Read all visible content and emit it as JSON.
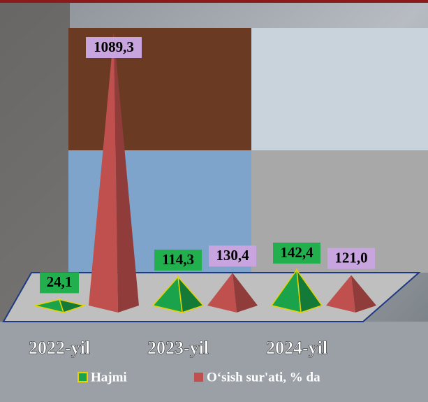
{
  "chart_data": {
    "type": "pyramid",
    "categories": [
      "2022-yil",
      "2023-yil",
      "2024-yil"
    ],
    "series": [
      {
        "name": "Hajmi",
        "color": "#1aa34a",
        "label_color": "#22b04e",
        "values": [
          24.1,
          114.3,
          142.4
        ],
        "value_labels": [
          "24,1",
          "114,3",
          "142,4"
        ]
      },
      {
        "name": "O‘sish sur'ati, % da",
        "color": "#c0504d",
        "label_color": "#c9a5e0",
        "values": [
          1089.3,
          130.4,
          121.0
        ],
        "value_labels": [
          "1089,3",
          "130,4",
          "121,0"
        ]
      }
    ],
    "legend": "bottom"
  }
}
